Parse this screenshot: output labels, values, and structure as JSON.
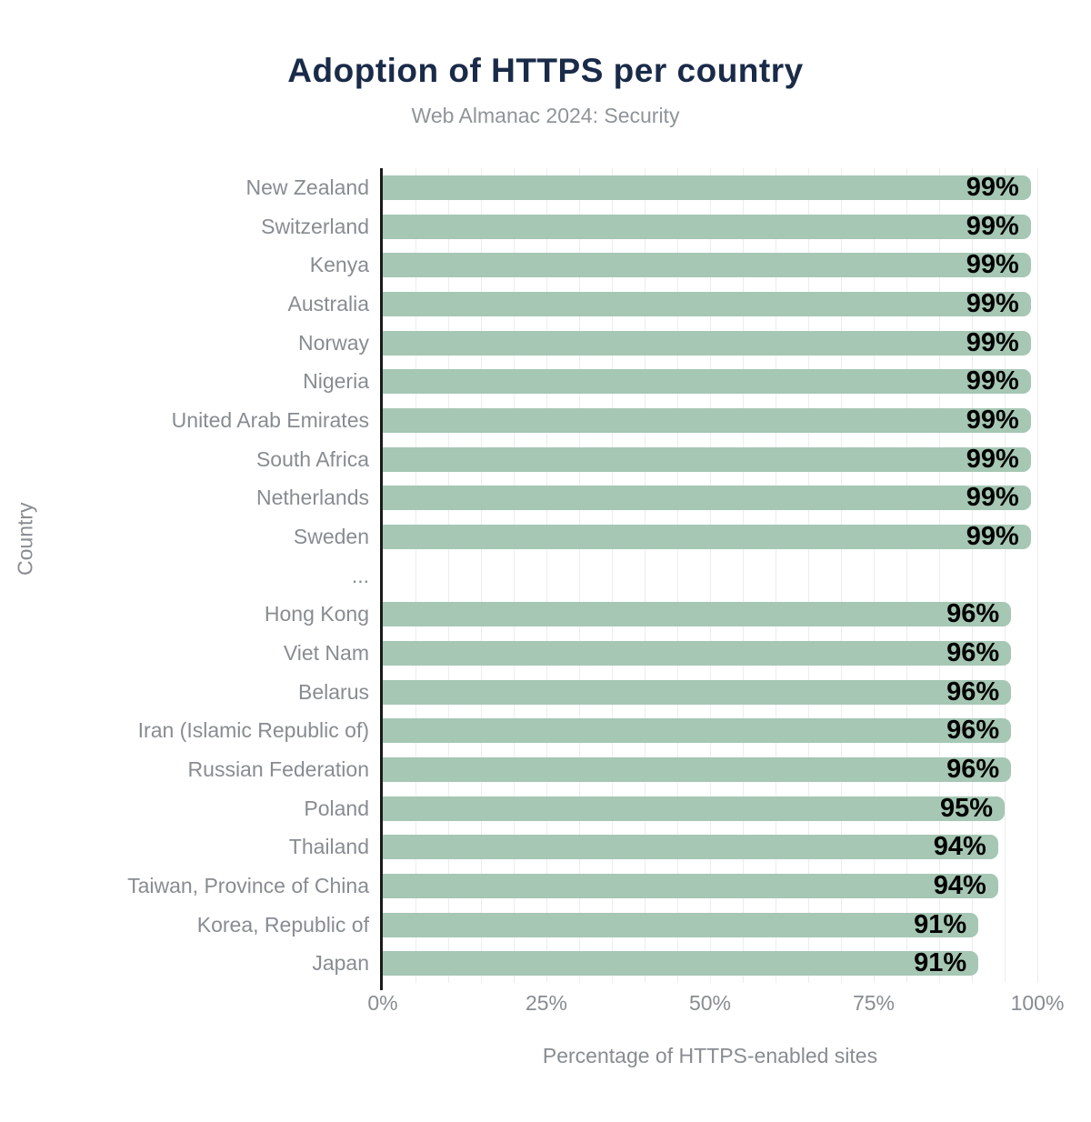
{
  "title": "Adoption of HTTPS per country",
  "subtitle": "Web Almanac 2024: Security",
  "colors": {
    "title": "#1a2b49",
    "subtitle": "#8f9499",
    "muted": "#888c91",
    "bar": "#a5c7b4",
    "value": "#000000",
    "axis": "#1a1a1a",
    "grid": "#ededed"
  },
  "chart_data": {
    "type": "bar",
    "orientation": "horizontal",
    "title": "Adoption of HTTPS per country",
    "subtitle": "Web Almanac 2024: Security",
    "xlabel": "Percentage of HTTPS-enabled sites",
    "ylabel": "Country",
    "xlim": [
      0,
      100
    ],
    "grid": true,
    "grid_step_percent": 5,
    "xticks": [
      {
        "value": 0,
        "label": "0%"
      },
      {
        "value": 25,
        "label": "25%"
      },
      {
        "value": 50,
        "label": "50%"
      },
      {
        "value": 75,
        "label": "75%"
      },
      {
        "value": 100,
        "label": "100%"
      }
    ],
    "categories": [
      "New Zealand",
      "Switzerland",
      "Kenya",
      "Australia",
      "Norway",
      "Nigeria",
      "United Arab Emirates",
      "South Africa",
      "Netherlands",
      "Sweden",
      "...",
      "Hong Kong",
      "Viet Nam",
      "Belarus",
      "Iran (Islamic Republic of)",
      "Russian Federation",
      "Poland",
      "Thailand",
      "Taiwan, Province of China",
      "Korea, Republic of",
      "Japan"
    ],
    "values": [
      99,
      99,
      99,
      99,
      99,
      99,
      99,
      99,
      99,
      99,
      null,
      96,
      96,
      96,
      96,
      96,
      95,
      94,
      94,
      91,
      91
    ],
    "value_suffix": "%"
  }
}
